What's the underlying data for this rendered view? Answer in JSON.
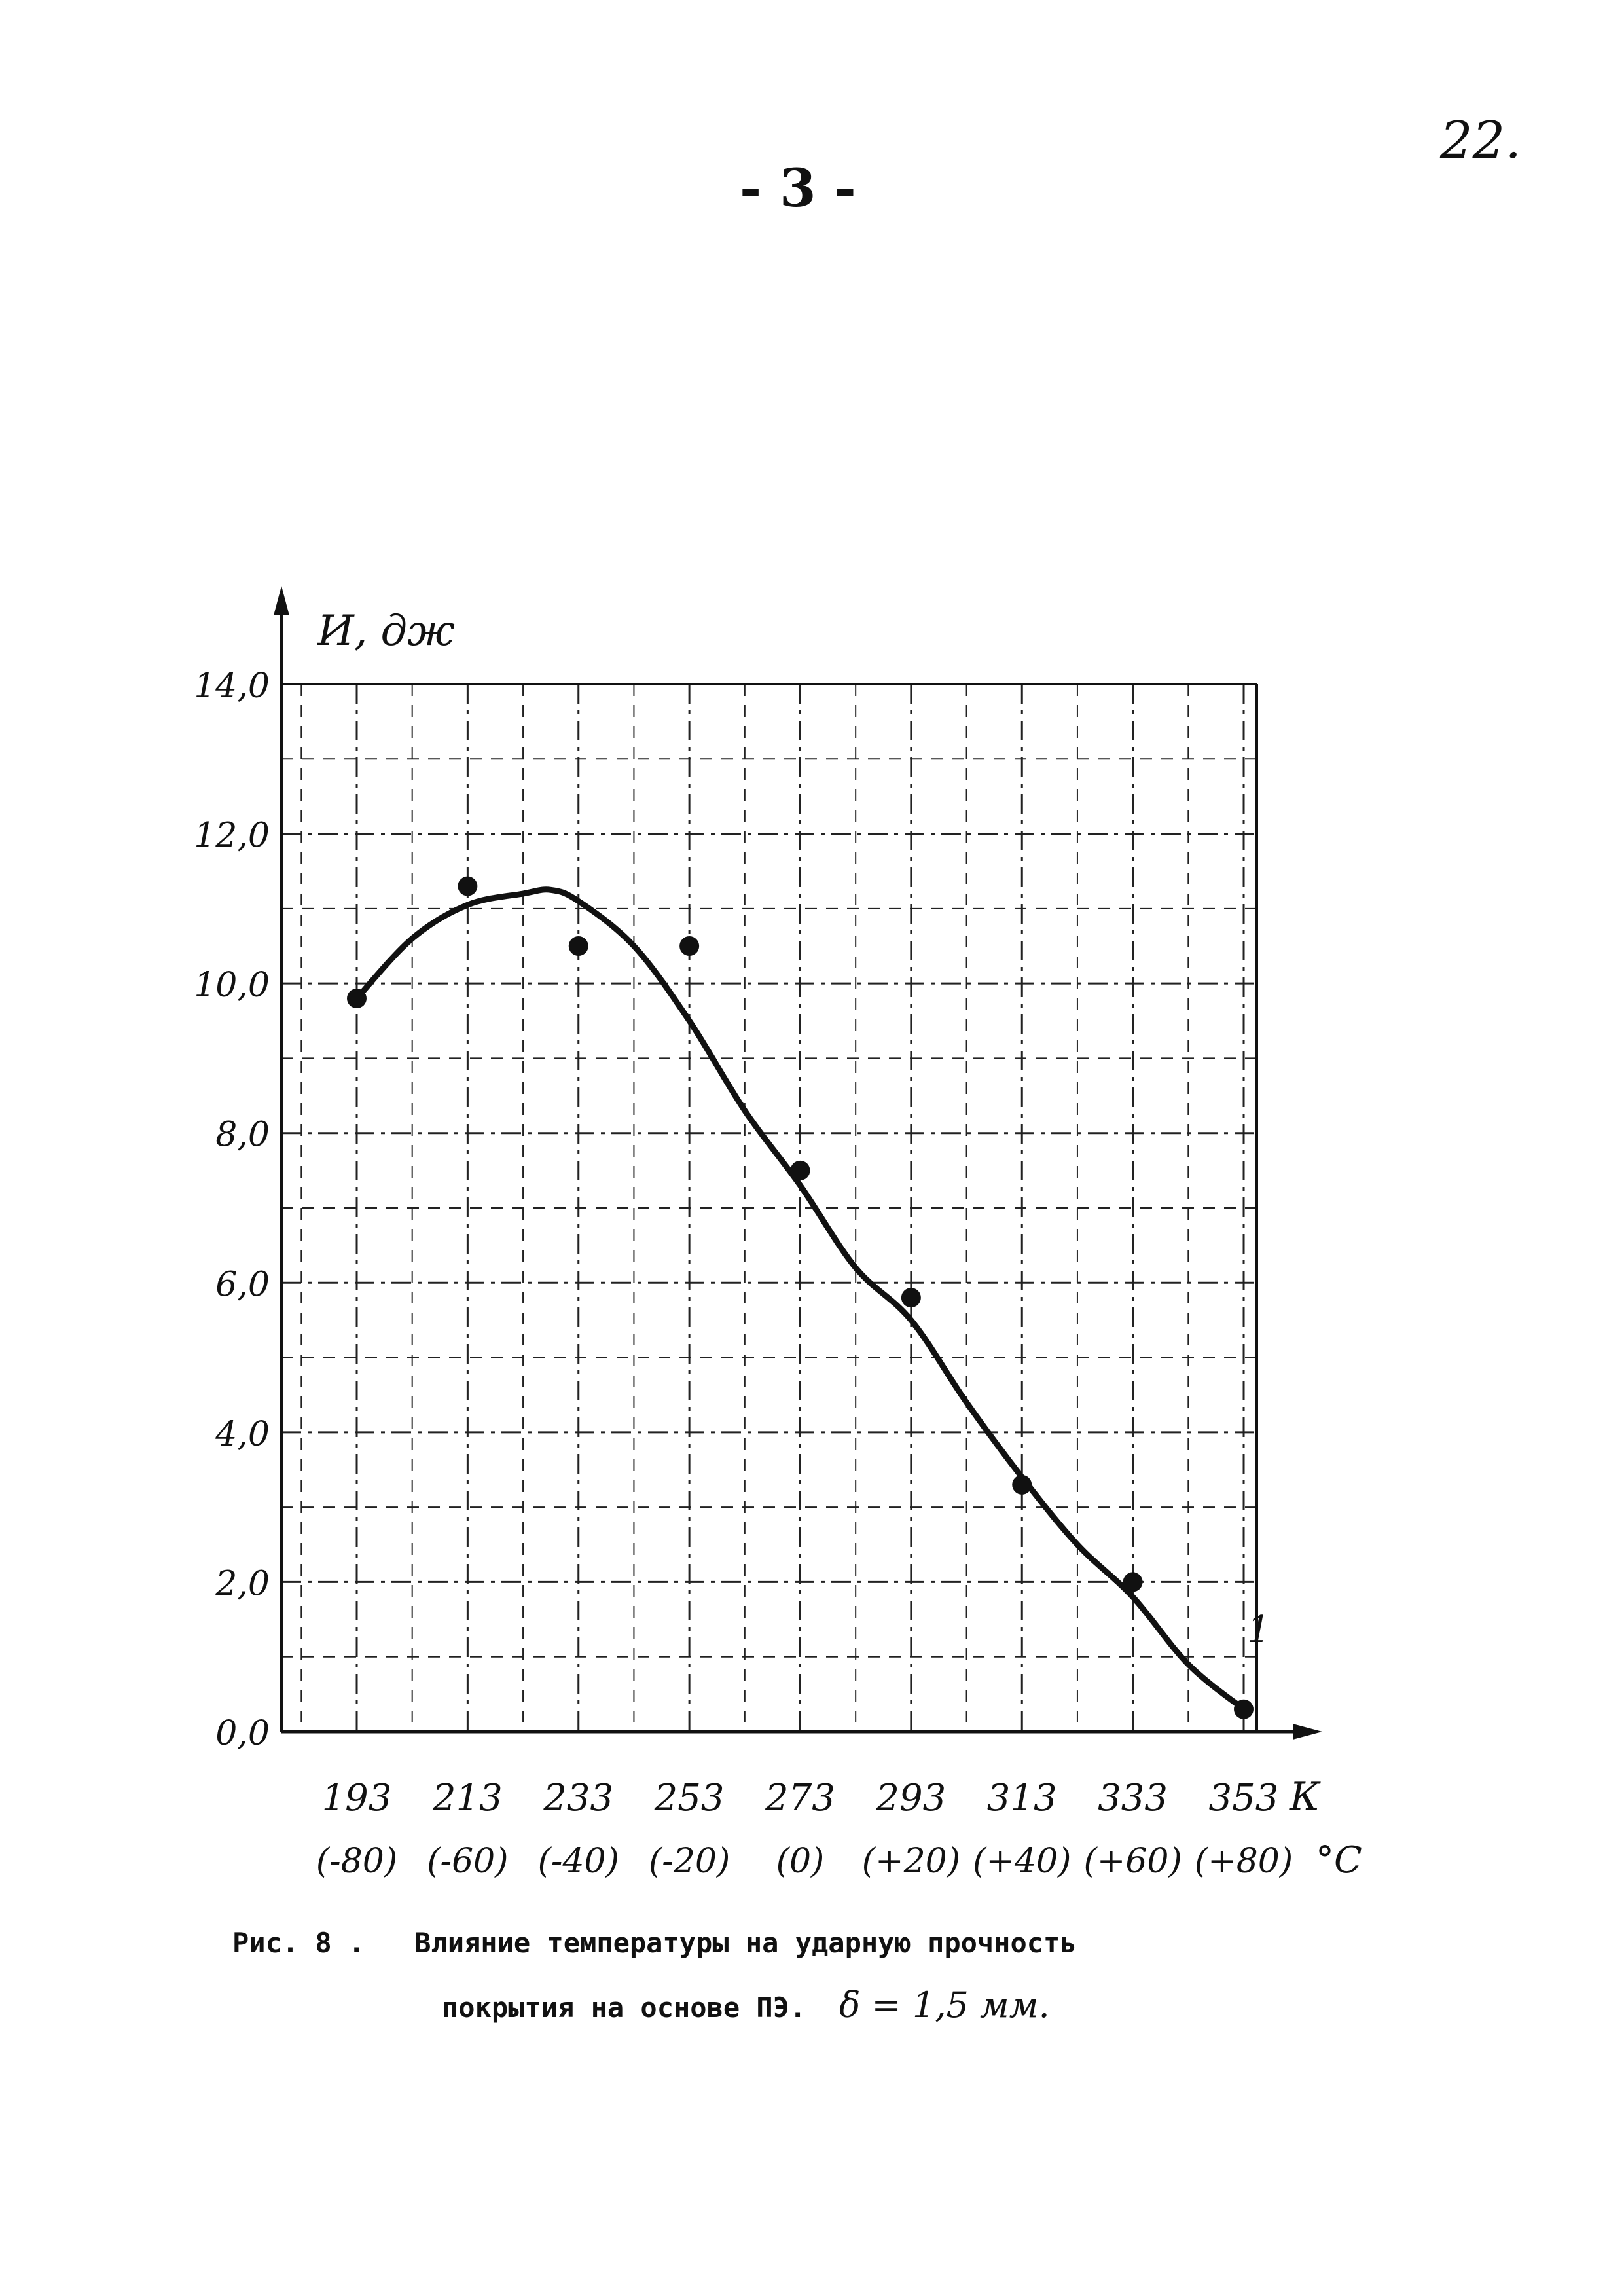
{
  "page": {
    "page_number": "22.",
    "sheet_number": "- 3 -"
  },
  "caption": {
    "prefix": "Рис. 8 .",
    "line1": "Влияние температуры на ударную прочность",
    "line2": "покрытия на основе ПЭ.",
    "thickness": "δ = 1,5 мм."
  },
  "chart_data": {
    "type": "scatter",
    "title": "",
    "ylabel": "И, дж",
    "xlabel_unit_k": "К",
    "xlabel_unit_c": "°С",
    "xlim": [
      193,
      353
    ],
    "ylim": [
      0,
      14
    ],
    "grid": true,
    "x_ticks_k": [
      "193",
      "213",
      "233",
      "253",
      "273",
      "293",
      "313",
      "333",
      "353"
    ],
    "x_ticks_c": [
      "(-80)",
      "(-60)",
      "(-40)",
      "(-20)",
      "(0)",
      "(+20)",
      "(+40)",
      "(+60)",
      "(+80)"
    ],
    "y_ticks": [
      "0,0",
      "2,0",
      "4,0",
      "6,0",
      "8,0",
      "10,0",
      "12,0",
      "14,0"
    ],
    "points": [
      {
        "x": 193,
        "y": 9.8
      },
      {
        "x": 213,
        "y": 11.3
      },
      {
        "x": 233,
        "y": 10.5
      },
      {
        "x": 253,
        "y": 10.5
      },
      {
        "x": 273,
        "y": 7.5
      },
      {
        "x": 293,
        "y": 5.8
      },
      {
        "x": 313,
        "y": 3.3
      },
      {
        "x": 333,
        "y": 2.0
      },
      {
        "x": 353,
        "y": 0.3
      }
    ],
    "fit_curve": [
      {
        "x": 193,
        "y": 9.8
      },
      {
        "x": 203,
        "y": 10.6
      },
      {
        "x": 213,
        "y": 11.05
      },
      {
        "x": 223,
        "y": 11.2
      },
      {
        "x": 228,
        "y": 11.25
      },
      {
        "x": 233,
        "y": 11.1
      },
      {
        "x": 243,
        "y": 10.5
      },
      {
        "x": 253,
        "y": 9.5
      },
      {
        "x": 263,
        "y": 8.3
      },
      {
        "x": 273,
        "y": 7.3
      },
      {
        "x": 283,
        "y": 6.2
      },
      {
        "x": 293,
        "y": 5.5
      },
      {
        "x": 303,
        "y": 4.4
      },
      {
        "x": 313,
        "y": 3.4
      },
      {
        "x": 323,
        "y": 2.5
      },
      {
        "x": 333,
        "y": 1.8
      },
      {
        "x": 343,
        "y": 0.9
      },
      {
        "x": 353,
        "y": 0.3
      }
    ],
    "curve_label": "1"
  }
}
